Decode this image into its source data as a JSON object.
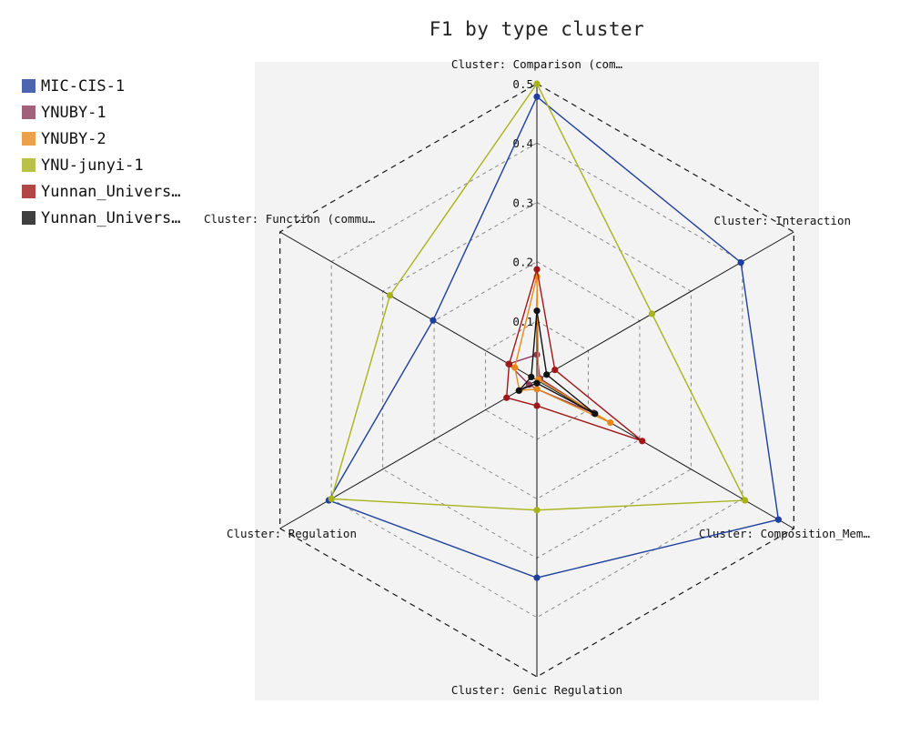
{
  "colors": {
    "MIC-CIS-1": "#1f3f9e",
    "YNUBY-1": "#8b3a5a",
    "YNUBY-2": "#e8891a",
    "YNU-junyi-1": "#a8b31a",
    "Yunnan_Univers_a": "#a01818",
    "Yunnan_Univers_b": "#111111"
  },
  "chart_data": {
    "type": "radar",
    "title": "F1 by type cluster",
    "axes": [
      "Cluster: Comparison (com…",
      "Cluster: Interaction",
      "Cluster: Composition_Mem…",
      "Cluster: Genic Regulation",
      "Cluster: Regulation",
      "Cluster: Function (commu…"
    ],
    "radial_range": [
      0,
      0.5
    ],
    "radial_ticks": [
      "0.1",
      "0.2",
      "0.3",
      "0.4",
      "0.5"
    ],
    "legend_position": "top-left",
    "grid": true,
    "series": [
      {
        "name": "MIC-CIS-1",
        "values": [
          0.478,
          0.397,
          0.47,
          0.333,
          0.405,
          0.202
        ]
      },
      {
        "name": "YNUBY-1",
        "values": [
          0.043,
          0.006,
          0.11,
          0.015,
          0.015,
          0.055
        ]
      },
      {
        "name": "YNUBY-2",
        "values": [
          0.175,
          0.003,
          0.143,
          0.015,
          0.034,
          0.043
        ]
      },
      {
        "name": "YNU-junyi-1",
        "values": [
          0.5,
          0.224,
          0.405,
          0.219,
          0.4,
          0.286
        ]
      },
      {
        "name": "Yunnan_Univers…",
        "values": [
          0.187,
          0.035,
          0.205,
          0.043,
          0.059,
          0.054
        ]
      },
      {
        "name": "Yunnan_Univers…",
        "values": [
          0.117,
          0.019,
          0.113,
          0.005,
          0.035,
          0.011
        ]
      }
    ]
  }
}
